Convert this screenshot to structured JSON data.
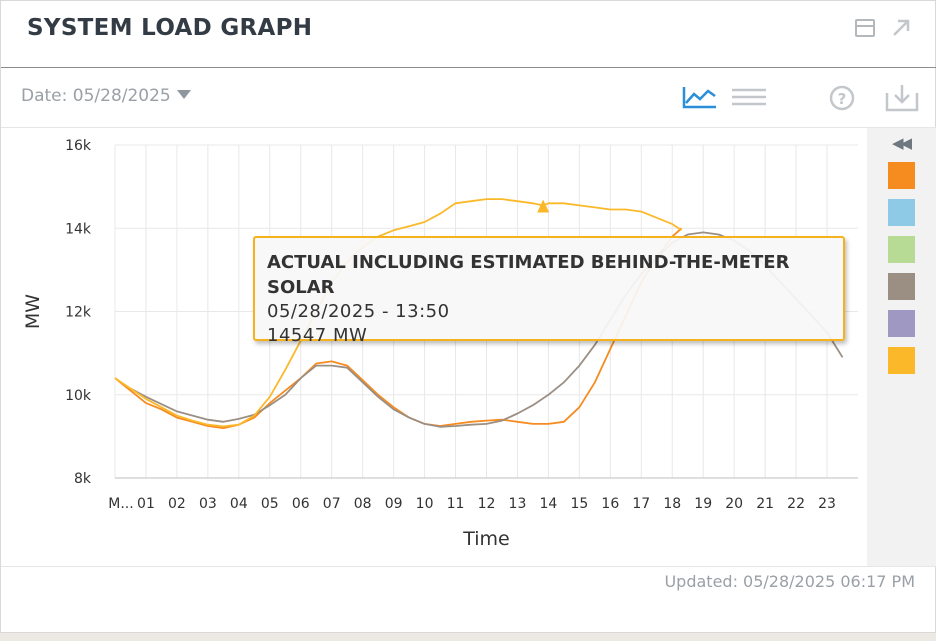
{
  "header": {
    "title": "SYSTEM LOAD GRAPH",
    "date_label": "Date: 05/28/2025"
  },
  "footer": {
    "updated": "Updated: 05/28/2025 06:17 PM"
  },
  "icons": {
    "minimize": "window-icon",
    "popout": "popout-arrow-icon",
    "line_chart": "line-chart-icon",
    "table_view": "table-lines-icon",
    "help": "help-circle-icon",
    "download": "download-icon",
    "collapse_legend": "double-chevron-left-icon"
  },
  "legend_swatches": [
    {
      "color": "#f68b1f"
    },
    {
      "color": "#8ecae6"
    },
    {
      "color": "#b7db94"
    },
    {
      "color": "#9b8f84"
    },
    {
      "color": "#9f98c2"
    },
    {
      "color": "#fbb92a"
    }
  ],
  "tooltip": {
    "title": "ACTUAL INCLUDING ESTIMATED BEHIND-THE-METER SOLAR",
    "datetime": "05/28/2025 - 13:50",
    "value": "14547 MW"
  },
  "chart_data": {
    "type": "line",
    "xlabel": "Time",
    "ylabel": "MW",
    "ylim": [
      8000,
      16000
    ],
    "yticks": [
      8000,
      10000,
      12000,
      14000,
      16000
    ],
    "ytick_labels": [
      "8k",
      "10k",
      "12k",
      "14k",
      "16k"
    ],
    "xlim": [
      0,
      24
    ],
    "xticks": [
      0,
      1,
      2,
      3,
      4,
      5,
      6,
      7,
      8,
      9,
      10,
      11,
      12,
      13,
      14,
      15,
      16,
      17,
      18,
      19,
      20,
      21,
      22,
      23
    ],
    "xtick_labels": [
      "M...",
      "01",
      "02",
      "03",
      "04",
      "05",
      "06",
      "07",
      "08",
      "09",
      "10",
      "11",
      "12",
      "13",
      "14",
      "15",
      "16",
      "17",
      "18",
      "19",
      "20",
      "21",
      "22",
      "23"
    ],
    "grid": true,
    "hover_marker": {
      "x": 13.83,
      "y": 14547
    },
    "series": [
      {
        "color": "#f68b1f",
        "x": [
          0,
          0.5,
          1,
          1.5,
          2,
          2.5,
          3,
          3.5,
          4,
          4.5,
          5,
          5.5,
          6,
          6.5,
          7,
          7.5,
          8,
          8.5,
          9,
          9.5,
          10,
          10.5,
          11,
          11.5,
          12,
          12.5,
          13,
          13.5,
          14,
          14.5,
          15,
          15.5,
          16,
          16.5,
          17,
          17.5,
          18,
          18.3
        ],
        "y": [
          10400,
          10100,
          9800,
          9650,
          9450,
          9350,
          9250,
          9200,
          9280,
          9450,
          9800,
          10100,
          10400,
          10750,
          10800,
          10700,
          10350,
          10000,
          9700,
          9450,
          9300,
          9250,
          9300,
          9350,
          9380,
          9400,
          9350,
          9300,
          9300,
          9350,
          9700,
          10300,
          11100,
          11900,
          12700,
          13300,
          13800,
          14000
        ]
      },
      {
        "color": "#9b8f84",
        "x": [
          0.5,
          1,
          2,
          3,
          3.5,
          4,
          4.5,
          5,
          5.5,
          6,
          6.5,
          7,
          7.5,
          8,
          8.5,
          9,
          9.5,
          10,
          10.5,
          11,
          11.5,
          12,
          12.5,
          13,
          13.5,
          14,
          14.5,
          15,
          15.5,
          16,
          16.5,
          17,
          17.5,
          18,
          18.5,
          19,
          19.5,
          20,
          20.5,
          21,
          21.5,
          22,
          22.5,
          23,
          23.5
        ],
        "y": [
          10150,
          9950,
          9600,
          9400,
          9350,
          9420,
          9520,
          9750,
          10000,
          10400,
          10700,
          10700,
          10650,
          10300,
          9950,
          9650,
          9450,
          9300,
          9230,
          9250,
          9280,
          9300,
          9380,
          9550,
          9750,
          10000,
          10300,
          10700,
          11200,
          11800,
          12400,
          12900,
          13300,
          13650,
          13850,
          13900,
          13850,
          13700,
          13450,
          13100,
          12700,
          12300,
          11900,
          11500,
          10900
        ]
      },
      {
        "color": "#fbb92a",
        "x": [
          0,
          0.5,
          1,
          1.5,
          2,
          2.5,
          3,
          3.5,
          4,
          4.5,
          5,
          5.5,
          6,
          6.5,
          7,
          7.5,
          8,
          8.5,
          9,
          9.5,
          10,
          10.5,
          11,
          11.5,
          12,
          12.5,
          13,
          13.5,
          13.83,
          14,
          14.5,
          15,
          15.5,
          16,
          16.5,
          17,
          17.5,
          18,
          18.3
        ],
        "y": [
          10400,
          10150,
          9900,
          9700,
          9500,
          9380,
          9280,
          9240,
          9280,
          9500,
          9950,
          10600,
          11300,
          12000,
          12700,
          13200,
          13550,
          13800,
          13950,
          14050,
          14150,
          14350,
          14600,
          14650,
          14700,
          14700,
          14650,
          14600,
          14547,
          14600,
          14600,
          14550,
          14500,
          14450,
          14450,
          14400,
          14250,
          14100,
          13950
        ]
      }
    ]
  }
}
